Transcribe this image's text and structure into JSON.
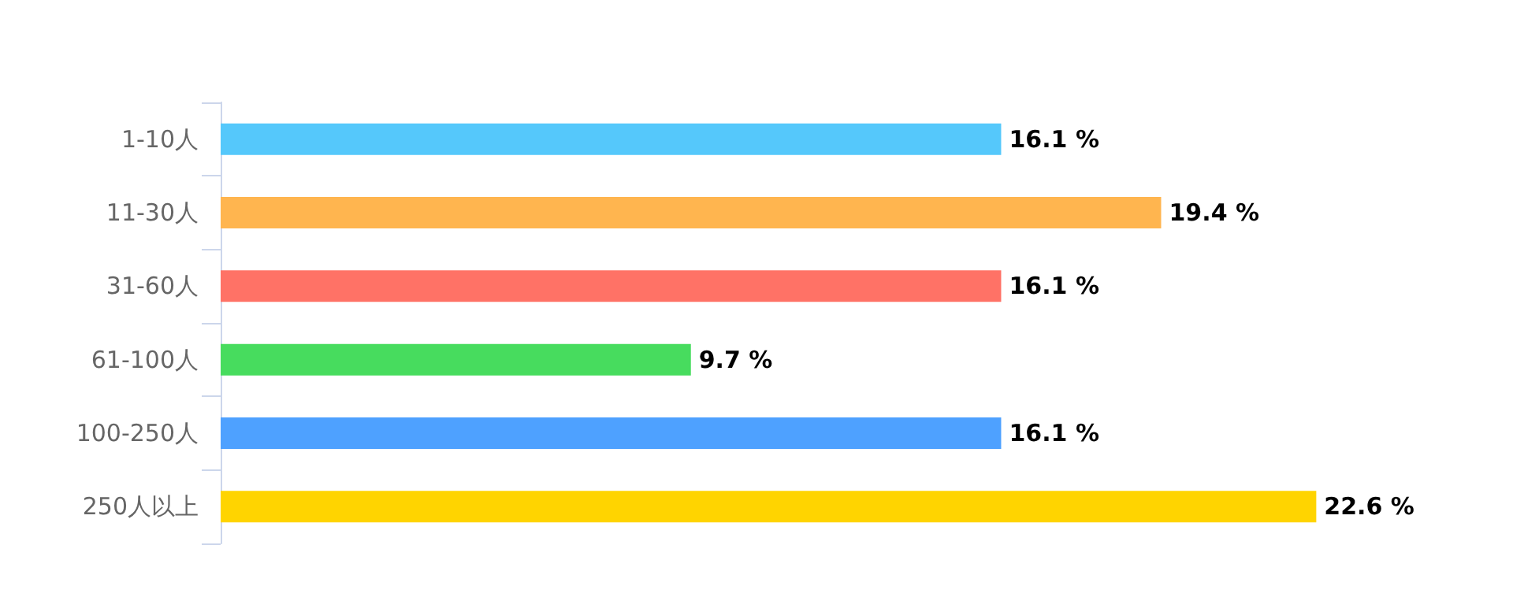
{
  "chart_data": {
    "type": "bar",
    "orientation": "horizontal",
    "categories": [
      "1-10人",
      "11-30人",
      "31-60人",
      "61-100人",
      "100-250人",
      "250人以上"
    ],
    "values": [
      16.1,
      19.4,
      16.1,
      9.7,
      16.1,
      22.6
    ],
    "colors": [
      "#55c8fb",
      "#ffb54f",
      "#ff7266",
      "#47dc5e",
      "#4ea1ff",
      "#ffd400"
    ],
    "value_labels": [
      "16.1 %",
      "19.4 %",
      "16.1 %",
      "9.7 %",
      "16.1 %",
      "22.6 %"
    ]
  }
}
